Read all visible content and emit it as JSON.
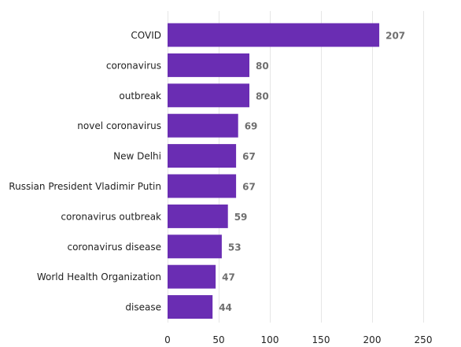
{
  "chart_data": {
    "type": "bar",
    "orientation": "horizontal",
    "categories": [
      "COVID",
      "coronavirus",
      "outbreak",
      "novel coronavirus",
      "New Delhi",
      "Russian President Vladimir Putin",
      "coronavirus outbreak",
      "coronavirus disease",
      "World Health Organization",
      "disease"
    ],
    "values": [
      207,
      80,
      80,
      69,
      67,
      67,
      59,
      53,
      47,
      44
    ],
    "xlim": [
      0,
      250
    ],
    "xticks": [
      0,
      50,
      100,
      150,
      200,
      250
    ],
    "grid": true,
    "bar_color": "#6a2db3",
    "title": "",
    "xlabel": "",
    "ylabel": ""
  }
}
